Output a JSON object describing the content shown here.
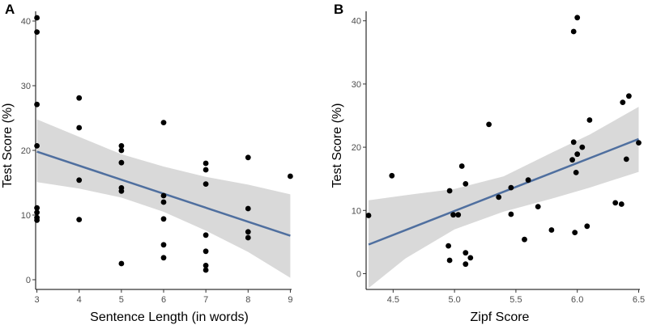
{
  "chart_data": [
    {
      "type": "scatter",
      "panel_label": "A",
      "xlabel": "Sentence Length (in words)",
      "ylabel": "Test Score (%)",
      "xlim": [
        2.97,
        9.03
      ],
      "ylim": [
        -1.5,
        41.5
      ],
      "x_ticks": [
        3,
        4,
        5,
        6,
        7,
        8,
        9
      ],
      "x_tick_labels": [
        "3",
        "4",
        "5",
        "6",
        "7",
        "8",
        "9"
      ],
      "y_ticks": [
        0,
        10,
        20,
        30,
        40
      ],
      "y_tick_labels": [
        "0",
        "10",
        "20",
        "30",
        "40"
      ],
      "grid": false,
      "points": [
        {
          "x": 3,
          "y": 40.5
        },
        {
          "x": 3,
          "y": 38.3
        },
        {
          "x": 3,
          "y": 27.1
        },
        {
          "x": 3,
          "y": 20.7
        },
        {
          "x": 3,
          "y": 11.1
        },
        {
          "x": 3,
          "y": 10.4
        },
        {
          "x": 3,
          "y": 9.6
        },
        {
          "x": 3,
          "y": 9.2
        },
        {
          "x": 4,
          "y": 28.1
        },
        {
          "x": 4,
          "y": 23.5
        },
        {
          "x": 4,
          "y": 15.4
        },
        {
          "x": 4,
          "y": 9.3
        },
        {
          "x": 5,
          "y": 20.7
        },
        {
          "x": 5,
          "y": 20.0
        },
        {
          "x": 5,
          "y": 18.1
        },
        {
          "x": 5,
          "y": 14.2
        },
        {
          "x": 5,
          "y": 13.7
        },
        {
          "x": 5,
          "y": 2.5
        },
        {
          "x": 6,
          "y": 24.3
        },
        {
          "x": 6,
          "y": 13.0
        },
        {
          "x": 6,
          "y": 12.0
        },
        {
          "x": 6,
          "y": 9.4
        },
        {
          "x": 6,
          "y": 5.4
        },
        {
          "x": 6,
          "y": 3.4
        },
        {
          "x": 7,
          "y": 18.0
        },
        {
          "x": 7,
          "y": 17.0
        },
        {
          "x": 7,
          "y": 14.8
        },
        {
          "x": 7,
          "y": 6.9
        },
        {
          "x": 7,
          "y": 4.4
        },
        {
          "x": 7,
          "y": 2.2
        },
        {
          "x": 7,
          "y": 1.5
        },
        {
          "x": 8,
          "y": 18.9
        },
        {
          "x": 8,
          "y": 11.0
        },
        {
          "x": 8,
          "y": 7.4
        },
        {
          "x": 8,
          "y": 6.5
        },
        {
          "x": 9,
          "y": 16.0
        }
      ],
      "fit_line": {
        "x": [
          3,
          9
        ],
        "y": [
          19.8,
          6.8
        ],
        "color": "#4f6f9f"
      },
      "confidence_band": {
        "x": [
          3,
          4,
          5,
          6,
          7,
          8,
          9
        ],
        "lower": [
          15.1,
          14.1,
          12.7,
          10.5,
          7.6,
          4.3,
          0.3
        ],
        "upper": [
          24.8,
          22.1,
          19.4,
          17.5,
          15.9,
          14.7,
          13.2
        ],
        "color": "#d9d9d9"
      }
    },
    {
      "type": "scatter",
      "panel_label": "B",
      "xlabel": "Zipf Score",
      "ylabel": "Test Score (%)",
      "xlim": [
        4.28,
        6.51
      ],
      "ylim": [
        -2.5,
        41.5
      ],
      "x_ticks": [
        4.5,
        5.0,
        5.5,
        6.0,
        6.5
      ],
      "x_tick_labels": [
        "4.5",
        "5.0",
        "5.5",
        "6.0",
        "6.5"
      ],
      "y_ticks": [
        0,
        10,
        20,
        30,
        40
      ],
      "y_tick_labels": [
        "0",
        "10",
        "20",
        "30",
        "40"
      ],
      "grid": false,
      "points": [
        {
          "x": 4.3,
          "y": 9.2
        },
        {
          "x": 4.49,
          "y": 15.5
        },
        {
          "x": 4.95,
          "y": 4.4
        },
        {
          "x": 4.96,
          "y": 13.1
        },
        {
          "x": 4.96,
          "y": 2.1
        },
        {
          "x": 4.99,
          "y": 9.3
        },
        {
          "x": 5.03,
          "y": 9.3
        },
        {
          "x": 5.06,
          "y": 17.0
        },
        {
          "x": 5.09,
          "y": 14.2
        },
        {
          "x": 5.09,
          "y": 3.3
        },
        {
          "x": 5.09,
          "y": 1.5
        },
        {
          "x": 5.13,
          "y": 2.5
        },
        {
          "x": 5.28,
          "y": 23.6
        },
        {
          "x": 5.36,
          "y": 12.1
        },
        {
          "x": 5.46,
          "y": 13.6
        },
        {
          "x": 5.46,
          "y": 9.4
        },
        {
          "x": 5.57,
          "y": 5.4
        },
        {
          "x": 5.6,
          "y": 14.8
        },
        {
          "x": 5.68,
          "y": 10.6
        },
        {
          "x": 5.79,
          "y": 6.9
        },
        {
          "x": 5.96,
          "y": 18.0
        },
        {
          "x": 5.97,
          "y": 38.3
        },
        {
          "x": 5.97,
          "y": 20.8
        },
        {
          "x": 5.98,
          "y": 6.5
        },
        {
          "x": 5.99,
          "y": 16.0
        },
        {
          "x": 6.0,
          "y": 40.5
        },
        {
          "x": 6.0,
          "y": 18.9
        },
        {
          "x": 6.04,
          "y": 20.0
        },
        {
          "x": 6.08,
          "y": 7.5
        },
        {
          "x": 6.1,
          "y": 24.3
        },
        {
          "x": 6.31,
          "y": 11.2
        },
        {
          "x": 6.36,
          "y": 11.0
        },
        {
          "x": 6.37,
          "y": 27.1
        },
        {
          "x": 6.4,
          "y": 18.1
        },
        {
          "x": 6.42,
          "y": 28.1
        },
        {
          "x": 6.5,
          "y": 20.7
        }
      ],
      "fit_line": {
        "x": [
          4.3,
          6.5
        ],
        "y": [
          4.6,
          21.3
        ],
        "color": "#4f6f9f"
      },
      "confidence_band": {
        "x": [
          4.3,
          4.6,
          5.0,
          5.4,
          5.8,
          6.1,
          6.5
        ],
        "lower": [
          -2.3,
          2.4,
          7.0,
          9.8,
          11.9,
          13.6,
          16.1
        ],
        "upper": [
          11.6,
          12.4,
          13.4,
          15.4,
          19.2,
          22.0,
          26.4
        ],
        "color": "#d9d9d9"
      }
    }
  ]
}
